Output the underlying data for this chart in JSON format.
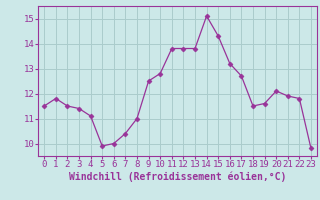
{
  "x": [
    0,
    1,
    2,
    3,
    4,
    5,
    6,
    7,
    8,
    9,
    10,
    11,
    12,
    13,
    14,
    15,
    16,
    17,
    18,
    19,
    20,
    21,
    22,
    23
  ],
  "y": [
    11.5,
    11.8,
    11.5,
    11.4,
    11.1,
    9.9,
    10.0,
    10.4,
    11.0,
    12.5,
    12.8,
    13.8,
    13.8,
    13.8,
    15.1,
    14.3,
    13.2,
    12.7,
    11.5,
    11.6,
    12.1,
    11.9,
    11.8,
    9.8
  ],
  "line_color": "#993399",
  "marker": "D",
  "marker_size": 2.5,
  "bg_color": "#cce8e8",
  "grid_color": "#aacccc",
  "xlabel": "Windchill (Refroidissement éolien,°C)",
  "xlim": [
    -0.5,
    23.5
  ],
  "ylim": [
    9.5,
    15.5
  ],
  "yticks": [
    10,
    11,
    12,
    13,
    14,
    15
  ],
  "xticks": [
    0,
    1,
    2,
    3,
    4,
    5,
    6,
    7,
    8,
    9,
    10,
    11,
    12,
    13,
    14,
    15,
    16,
    17,
    18,
    19,
    20,
    21,
    22,
    23
  ],
  "tick_color": "#993399",
  "label_color": "#993399",
  "spine_color": "#993399",
  "font_size": 6.5,
  "xlabel_fontsize": 7
}
